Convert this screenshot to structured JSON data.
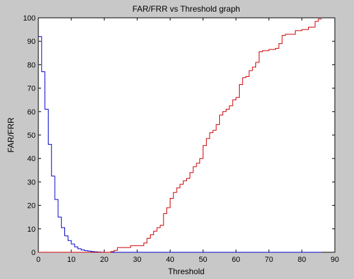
{
  "chart_data": {
    "type": "line",
    "title": "FAR/FRR vs Threshold graph",
    "xlabel": "Threshold",
    "ylabel": "FAR/FRR",
    "xlim": [
      0,
      90
    ],
    "ylim": [
      0,
      100
    ],
    "xticks": [
      0,
      10,
      20,
      30,
      40,
      50,
      60,
      70,
      80,
      90
    ],
    "yticks": [
      0,
      10,
      20,
      30,
      40,
      50,
      60,
      70,
      80,
      90,
      100
    ],
    "grid": false,
    "legend": "none",
    "step": true,
    "series": [
      {
        "color": "#0000cc",
        "x": [
          0,
          1,
          2,
          3,
          4,
          5,
          6,
          7,
          8,
          9,
          10,
          11,
          12,
          13,
          14,
          15,
          16,
          17,
          18,
          19,
          20,
          22,
          24,
          30,
          40,
          50,
          60,
          70,
          80,
          86
        ],
        "y": [
          92,
          77,
          61,
          46,
          32.5,
          22.5,
          15,
          10.5,
          7,
          5,
          3.5,
          2.3,
          1.5,
          1,
          0.7,
          0.5,
          0.3,
          0.2,
          0.1,
          0.05,
          0,
          0,
          0,
          0,
          0,
          0,
          0,
          0,
          0,
          0
        ]
      },
      {
        "color": "#cc0000",
        "x": [
          0,
          20,
          22,
          23,
          24,
          28,
          32,
          33,
          34,
          35,
          36,
          37,
          38,
          39,
          40,
          41,
          42,
          43,
          44,
          45,
          46,
          47,
          48,
          49,
          50,
          51,
          52,
          53,
          54,
          55,
          56,
          57,
          58,
          59,
          60,
          61,
          62,
          63,
          64,
          65,
          66,
          67,
          68,
          70,
          72,
          73,
          74,
          75,
          78,
          80,
          82,
          84,
          85,
          86
        ],
        "y": [
          0,
          0,
          0.3,
          0.8,
          2,
          2.8,
          4,
          6,
          7.5,
          9,
          10.5,
          11.5,
          16.5,
          19,
          23,
          25.5,
          27.5,
          29,
          30.5,
          31.5,
          34,
          36.5,
          38,
          40,
          45.5,
          48.5,
          51,
          52,
          54.5,
          58.5,
          60,
          61,
          62.5,
          65,
          66,
          71.5,
          74.5,
          75,
          77.5,
          79,
          81,
          85.5,
          86,
          86.5,
          87,
          89,
          92.5,
          93,
          94.5,
          95,
          96,
          98.5,
          99.5,
          99.5
        ]
      }
    ]
  }
}
